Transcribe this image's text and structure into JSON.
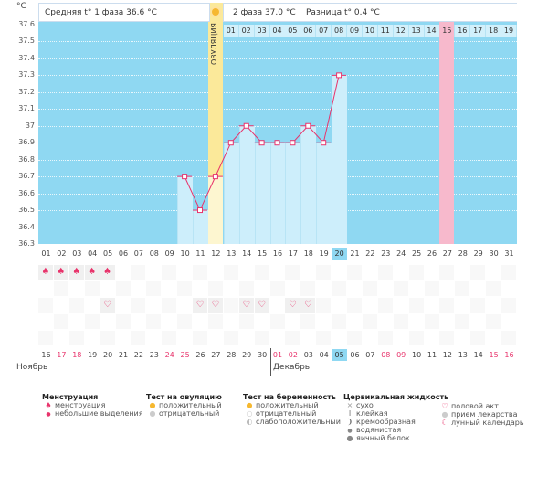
{
  "header": {
    "unit": "°C",
    "phase1": "Средняя t° 1 фаза 36.6 °C",
    "phase2": "2 фаза 37.0 °C",
    "diff": "Разница t° 0.4 °C",
    "ovulation": "ОВУЛЯЦИЯ"
  },
  "colors": {
    "background": "#8fd8f2",
    "bar": "#cdeefb",
    "line": "#e8336b",
    "ovulation": "#fbe99a",
    "highlight": "#f7b9cc"
  },
  "chart_data": {
    "type": "line",
    "ylim": [
      36.3,
      37.6
    ],
    "yticks": [
      "37.6",
      "37.5",
      "37.4",
      "37.3",
      "37.2",
      "37.1",
      "37",
      "36.9",
      "36.8",
      "36.7",
      "36.6",
      "36.5",
      "36.4",
      "36.3"
    ],
    "x": [
      10,
      11,
      12,
      13,
      14,
      15,
      16,
      17,
      18,
      19,
      20
    ],
    "values": [
      36.7,
      36.5,
      36.7,
      36.9,
      37.0,
      36.9,
      36.9,
      36.9,
      37.0,
      36.9,
      37.3
    ],
    "ovulation_day": 12,
    "highlight_day": 27,
    "selected_day": 20
  },
  "cycle_days": [
    "01",
    "02",
    "03",
    "04",
    "05",
    "06",
    "07",
    "08",
    "09",
    "10",
    "11",
    "12",
    "13",
    "14",
    "15",
    "16",
    "17",
    "18",
    "19",
    "20",
    "21",
    "22",
    "23",
    "24",
    "25",
    "26",
    "27",
    "28",
    "29",
    "30",
    "31"
  ],
  "post_ovulation_days": [
    "01",
    "02",
    "03",
    "04",
    "05",
    "06",
    "07",
    "08",
    "09",
    "10",
    "11",
    "12",
    "13",
    "14",
    "15",
    "16",
    "17",
    "18",
    "19"
  ],
  "dates": [
    "16",
    "17",
    "18",
    "19",
    "20",
    "21",
    "22",
    "23",
    "24",
    "25",
    "26",
    "27",
    "28",
    "29",
    "30",
    "01",
    "02",
    "03",
    "04",
    "05",
    "06",
    "07",
    "08",
    "09",
    "10",
    "11",
    "12",
    "13",
    "14",
    "15",
    "16"
  ],
  "weekend_dates": [
    1,
    2,
    8,
    9,
    15,
    16,
    22,
    23,
    29,
    30
  ],
  "months": [
    "Ноябрь",
    "Декабрь"
  ],
  "menstruation_days": [
    1,
    2,
    3,
    4,
    5
  ],
  "intercourse_days": [
    5,
    11,
    12,
    14,
    15,
    17,
    18
  ],
  "legend": {
    "menstruation": {
      "title": "Менструация",
      "items": [
        "менструация",
        "небольшие выделения"
      ]
    },
    "ovulation_test": {
      "title": "Тест на овуляцию",
      "items": [
        "положительный",
        "отрицательный"
      ]
    },
    "pregnancy_test": {
      "title": "Тест на беременность",
      "items": [
        "положительный",
        "отрицательный",
        "слабоположительный"
      ]
    },
    "cervical": {
      "title": "Цервикальная жидкость",
      "items": [
        "сухо",
        "клейкая",
        "кремообразная",
        "водянистая",
        "яичный белок"
      ]
    },
    "other": {
      "items": [
        "половой акт",
        "прием лекарства",
        "лунный календарь"
      ]
    }
  }
}
